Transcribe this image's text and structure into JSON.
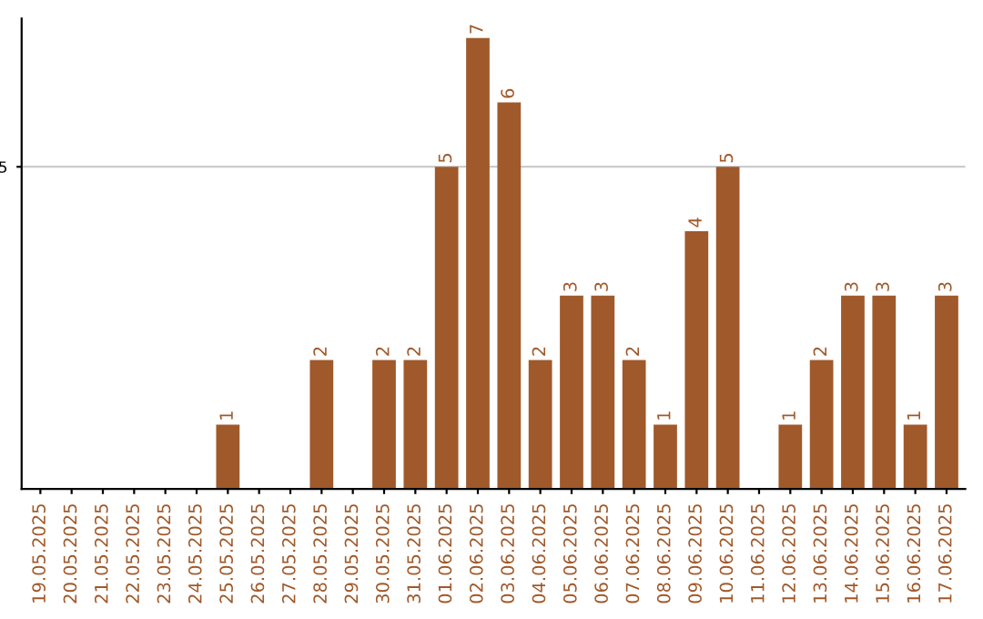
{
  "chart_data": {
    "type": "bar",
    "categories": [
      "19.05.2025",
      "20.05.2025",
      "21.05.2025",
      "22.05.2025",
      "23.05.2025",
      "24.05.2025",
      "25.05.2025",
      "26.05.2025",
      "27.05.2025",
      "28.05.2025",
      "29.05.2025",
      "30.05.2025",
      "31.05.2025",
      "01.06.2025",
      "02.06.2025",
      "03.06.2025",
      "04.06.2025",
      "05.06.2025",
      "06.06.2025",
      "07.06.2025",
      "08.06.2025",
      "09.06.2025",
      "10.06.2025",
      "11.06.2025",
      "12.06.2025",
      "13.06.2025",
      "14.06.2025",
      "15.06.2025",
      "16.06.2025",
      "17.06.2025"
    ],
    "values": [
      0,
      0,
      0,
      0,
      0,
      0,
      1,
      0,
      0,
      2,
      0,
      2,
      2,
      5,
      7,
      6,
      2,
      3,
      3,
      2,
      1,
      4,
      5,
      0,
      1,
      2,
      3,
      3,
      1,
      3
    ],
    "value_labels": [
      null,
      null,
      null,
      null,
      null,
      null,
      "1",
      null,
      null,
      "2",
      null,
      "2",
      "2",
      "5",
      "7",
      "6",
      "2",
      "3",
      "3",
      "2",
      "1",
      "4",
      "5",
      null,
      "1",
      "2",
      "3",
      "3",
      "1",
      "3"
    ],
    "color": "#a0592a",
    "ylim": [
      0,
      7.3
    ],
    "yticks": [
      5
    ],
    "grid": "y"
  }
}
